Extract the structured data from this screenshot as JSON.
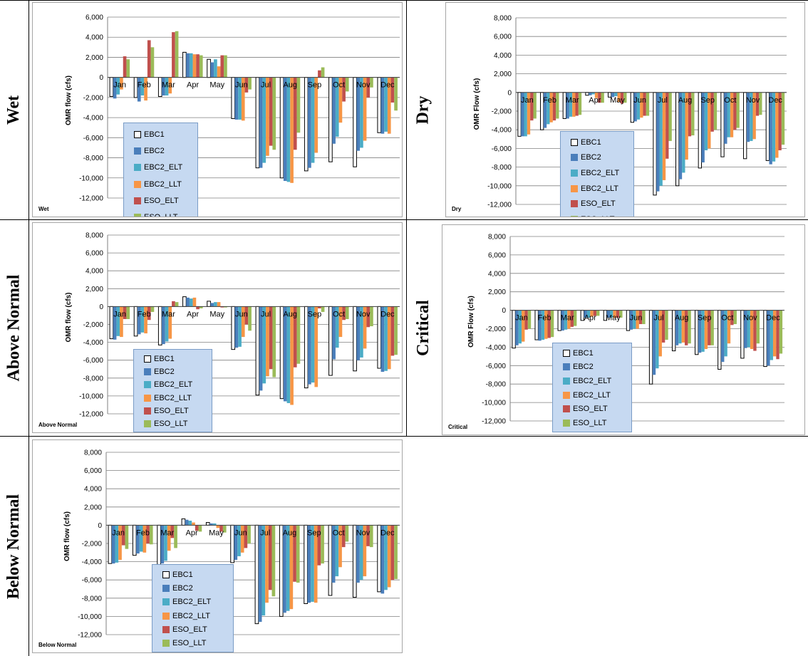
{
  "rows": [
    "Wet",
    "Dry",
    "Above Normal",
    "Critical",
    "Below Normal"
  ],
  "series_colors": {
    "EBC1": "#ffffff",
    "EBC2": "#4a7ebb",
    "EBC2_ELT": "#4bacc6",
    "EBC2_LLT": "#f79646",
    "ESO_ELT": "#c0504d",
    "ESO_LLT": "#9bbb59"
  },
  "chart_data": [
    {
      "type": "bar",
      "panel_label": "Wet",
      "ylabel": "OMR flow  (cfs)",
      "ylim": [
        -12000,
        6000
      ],
      "ytick_step": 2000,
      "categories": [
        "Jan",
        "Feb",
        "Mar",
        "Apr",
        "May",
        "Jun",
        "Jul",
        "Aug",
        "Sep",
        "Oct",
        "Nov",
        "Dec"
      ],
      "legend_placement": "bottom-left",
      "series": [
        {
          "name": "EBC1",
          "values": [
            -1900,
            -2000,
            -1900,
            2500,
            1800,
            -4100,
            -9000,
            -10000,
            -9300,
            -8400,
            -8900,
            -5500
          ]
        },
        {
          "name": "EBC2",
          "values": [
            -2100,
            -2400,
            -1800,
            2400,
            1500,
            -4200,
            -9000,
            -10300,
            -9000,
            -6600,
            -7300,
            -5600
          ]
        },
        {
          "name": "EBC2_ELT",
          "values": [
            -1700,
            -1800,
            -1800,
            2400,
            1800,
            -4200,
            -8500,
            -10400,
            -8500,
            -5900,
            -7000,
            -5400
          ]
        },
        {
          "name": "EBC2_LLT",
          "values": [
            -1200,
            -2300,
            -1600,
            2300,
            1100,
            -4300,
            -7800,
            -10500,
            -7500,
            -4500,
            -6300,
            -5600
          ]
        },
        {
          "name": "ESO_ELT",
          "values": [
            2100,
            3700,
            4500,
            2300,
            2200,
            -1500,
            -6800,
            -7200,
            700,
            -2400,
            -2000,
            -2500
          ]
        },
        {
          "name": "ESO_LLT",
          "values": [
            1800,
            3000,
            4600,
            2200,
            2200,
            -1200,
            -7200,
            -5500,
            1000,
            -1400,
            -1000,
            -3300
          ]
        }
      ]
    },
    {
      "type": "bar",
      "panel_label": "Dry",
      "ylabel": "OMR Flow  (cfs)",
      "ylim": [
        -12000,
        8000
      ],
      "ytick_step": 2000,
      "categories": [
        "Jan",
        "Feb",
        "Mar",
        "Apr",
        "May",
        "Jun",
        "Jul",
        "Aug",
        "Sep",
        "Oct",
        "Nov",
        "Dec"
      ],
      "legend_placement": "bottom-center",
      "series": [
        {
          "name": "EBC1",
          "values": [
            -4700,
            -4000,
            -2800,
            -300,
            -500,
            -3200,
            -11000,
            -10000,
            -8100,
            -6900,
            -7100,
            -7300
          ]
        },
        {
          "name": "EBC2",
          "values": [
            -4700,
            -3800,
            -2800,
            -300,
            -500,
            -3100,
            -10600,
            -9300,
            -7500,
            -5500,
            -5300,
            -7700
          ]
        },
        {
          "name": "EBC2_ELT",
          "values": [
            -4700,
            -3400,
            -2600,
            -200,
            -400,
            -2900,
            -10000,
            -8600,
            -6200,
            -4800,
            -5200,
            -7400
          ]
        },
        {
          "name": "EBC2_LLT",
          "values": [
            -4500,
            -3200,
            -2600,
            -600,
            -1000,
            -2700,
            -9400,
            -7200,
            -6000,
            -4800,
            -5000,
            -7000
          ]
        },
        {
          "name": "ESO_ELT",
          "values": [
            -3000,
            -3000,
            -2500,
            -1100,
            -1200,
            -2500,
            -7100,
            -4700,
            -4200,
            -4000,
            -2500,
            -6200
          ]
        },
        {
          "name": "ESO_LLT",
          "values": [
            -2800,
            -2800,
            -2400,
            -1100,
            -1100,
            -2500,
            -5200,
            -4600,
            -4000,
            -3800,
            -2400,
            -5600
          ]
        }
      ]
    },
    {
      "type": "bar",
      "panel_label": "Above Normal",
      "ylabel": "OMR flow  (cfs)",
      "ylim": [
        -12000,
        8000
      ],
      "ytick_step": 2000,
      "categories": [
        "Jan",
        "Feb",
        "Mar",
        "Apr",
        "May",
        "Jun",
        "Jul",
        "Aug",
        "Sep",
        "Oct",
        "Nov",
        "Dec"
      ],
      "legend_placement": "bottom-center",
      "series": [
        {
          "name": "EBC1",
          "values": [
            -3600,
            -3300,
            -4300,
            1100,
            600,
            -4800,
            -9900,
            -10300,
            -9100,
            -7700,
            -7200,
            -6900
          ]
        },
        {
          "name": "EBC2",
          "values": [
            -3700,
            -3100,
            -4200,
            1000,
            400,
            -4600,
            -9400,
            -10600,
            -8700,
            -5900,
            -6000,
            -7300
          ]
        },
        {
          "name": "EBC2_ELT",
          "values": [
            -3300,
            -2900,
            -3900,
            900,
            500,
            -4500,
            -8600,
            -10800,
            -8500,
            -4600,
            -5700,
            -7200
          ]
        },
        {
          "name": "EBC2_LLT",
          "values": [
            -3400,
            -3000,
            -3600,
            1000,
            500,
            -3400,
            -7800,
            -11000,
            -9000,
            -3400,
            -4700,
            -7000
          ]
        },
        {
          "name": "ESO_ELT",
          "values": [
            -1400,
            -1500,
            600,
            -300,
            -100,
            -2000,
            -7000,
            -6800,
            -200,
            -1500,
            -2300,
            -5500
          ]
        },
        {
          "name": "ESO_LLT",
          "values": [
            -1400,
            -600,
            500,
            -200,
            -100,
            -2700,
            -7900,
            -6400,
            -600,
            -1400,
            -2200,
            -5400
          ]
        }
      ]
    },
    {
      "type": "bar",
      "panel_label": "Critical",
      "ylabel": "OMR Flow  (cfs)",
      "ylim": [
        -12000,
        8000
      ],
      "ytick_step": 2000,
      "categories": [
        "Jan",
        "Feb",
        "Mar",
        "Apr",
        "May",
        "Jun",
        "Jul",
        "Aug",
        "Sep",
        "Oct",
        "Nov",
        "Dec"
      ],
      "legend_placement": "bottom-center",
      "series": [
        {
          "name": "EBC1",
          "values": [
            -4100,
            -3200,
            -2200,
            -1100,
            -1100,
            -2200,
            -8000,
            -4400,
            -4800,
            -6400,
            -5200,
            -6100
          ]
        },
        {
          "name": "EBC2",
          "values": [
            -3800,
            -3300,
            -2200,
            -800,
            -800,
            -2100,
            -7000,
            -3800,
            -4600,
            -5600,
            -4100,
            -6000
          ]
        },
        {
          "name": "EBC2_ELT",
          "values": [
            -3600,
            -3200,
            -2100,
            -800,
            -800,
            -2000,
            -6300,
            -3600,
            -4500,
            -5000,
            -4000,
            -5400
          ]
        },
        {
          "name": "EBC2_LLT",
          "values": [
            -3400,
            -3100,
            -2000,
            -700,
            -800,
            -2000,
            -5000,
            -3500,
            -4200,
            -3600,
            -4200,
            -5000
          ]
        },
        {
          "name": "ESO_ELT",
          "values": [
            -2100,
            -3000,
            -1800,
            -600,
            -800,
            -1500,
            -3500,
            -3800,
            -3800,
            -1600,
            -4400,
            -5300
          ]
        },
        {
          "name": "ESO_LLT",
          "values": [
            -2000,
            -2900,
            -1700,
            -600,
            -800,
            -1500,
            -3200,
            -3600,
            -3800,
            -1500,
            -3600,
            -4700
          ]
        }
      ]
    },
    {
      "type": "bar",
      "panel_label": "Below Normal",
      "ylabel": "OMR flow  (cfs)",
      "ylim": [
        -12000,
        8000
      ],
      "ytick_step": 2000,
      "categories": [
        "Jan",
        "Feb",
        "Mar",
        "Apr",
        "May",
        "Jun",
        "Jul",
        "Aug",
        "Sep",
        "Oct",
        "Nov",
        "Dec"
      ],
      "legend_placement": "bottom-center",
      "series": [
        {
          "name": "EBC1",
          "values": [
            -4200,
            -3300,
            -4300,
            700,
            300,
            -4100,
            -10800,
            -10000,
            -8600,
            -7700,
            -7900,
            -7300
          ]
        },
        {
          "name": "EBC2",
          "values": [
            -4200,
            -3100,
            -4200,
            600,
            200,
            -3800,
            -10600,
            -9600,
            -8500,
            -6300,
            -6300,
            -7500
          ]
        },
        {
          "name": "EBC2_ELT",
          "values": [
            -4100,
            -2900,
            -3900,
            500,
            200,
            -3400,
            -9900,
            -9400,
            -8400,
            -5600,
            -6000,
            -7100
          ]
        },
        {
          "name": "EBC2_LLT",
          "values": [
            -3800,
            -3000,
            -2800,
            300,
            -300,
            -3000,
            -8500,
            -9200,
            -8500,
            -4600,
            -5600,
            -6800
          ]
        },
        {
          "name": "ESO_ELT",
          "values": [
            -2200,
            -2000,
            -1400,
            -600,
            -700,
            -2500,
            -7100,
            -6200,
            -4400,
            -2400,
            -2300,
            -6000
          ]
        },
        {
          "name": "ESO_LLT",
          "values": [
            -2600,
            -2100,
            -2500,
            -700,
            -800,
            -2000,
            -7800,
            -6300,
            -4200,
            -1800,
            -2400,
            -5900
          ]
        }
      ]
    }
  ]
}
